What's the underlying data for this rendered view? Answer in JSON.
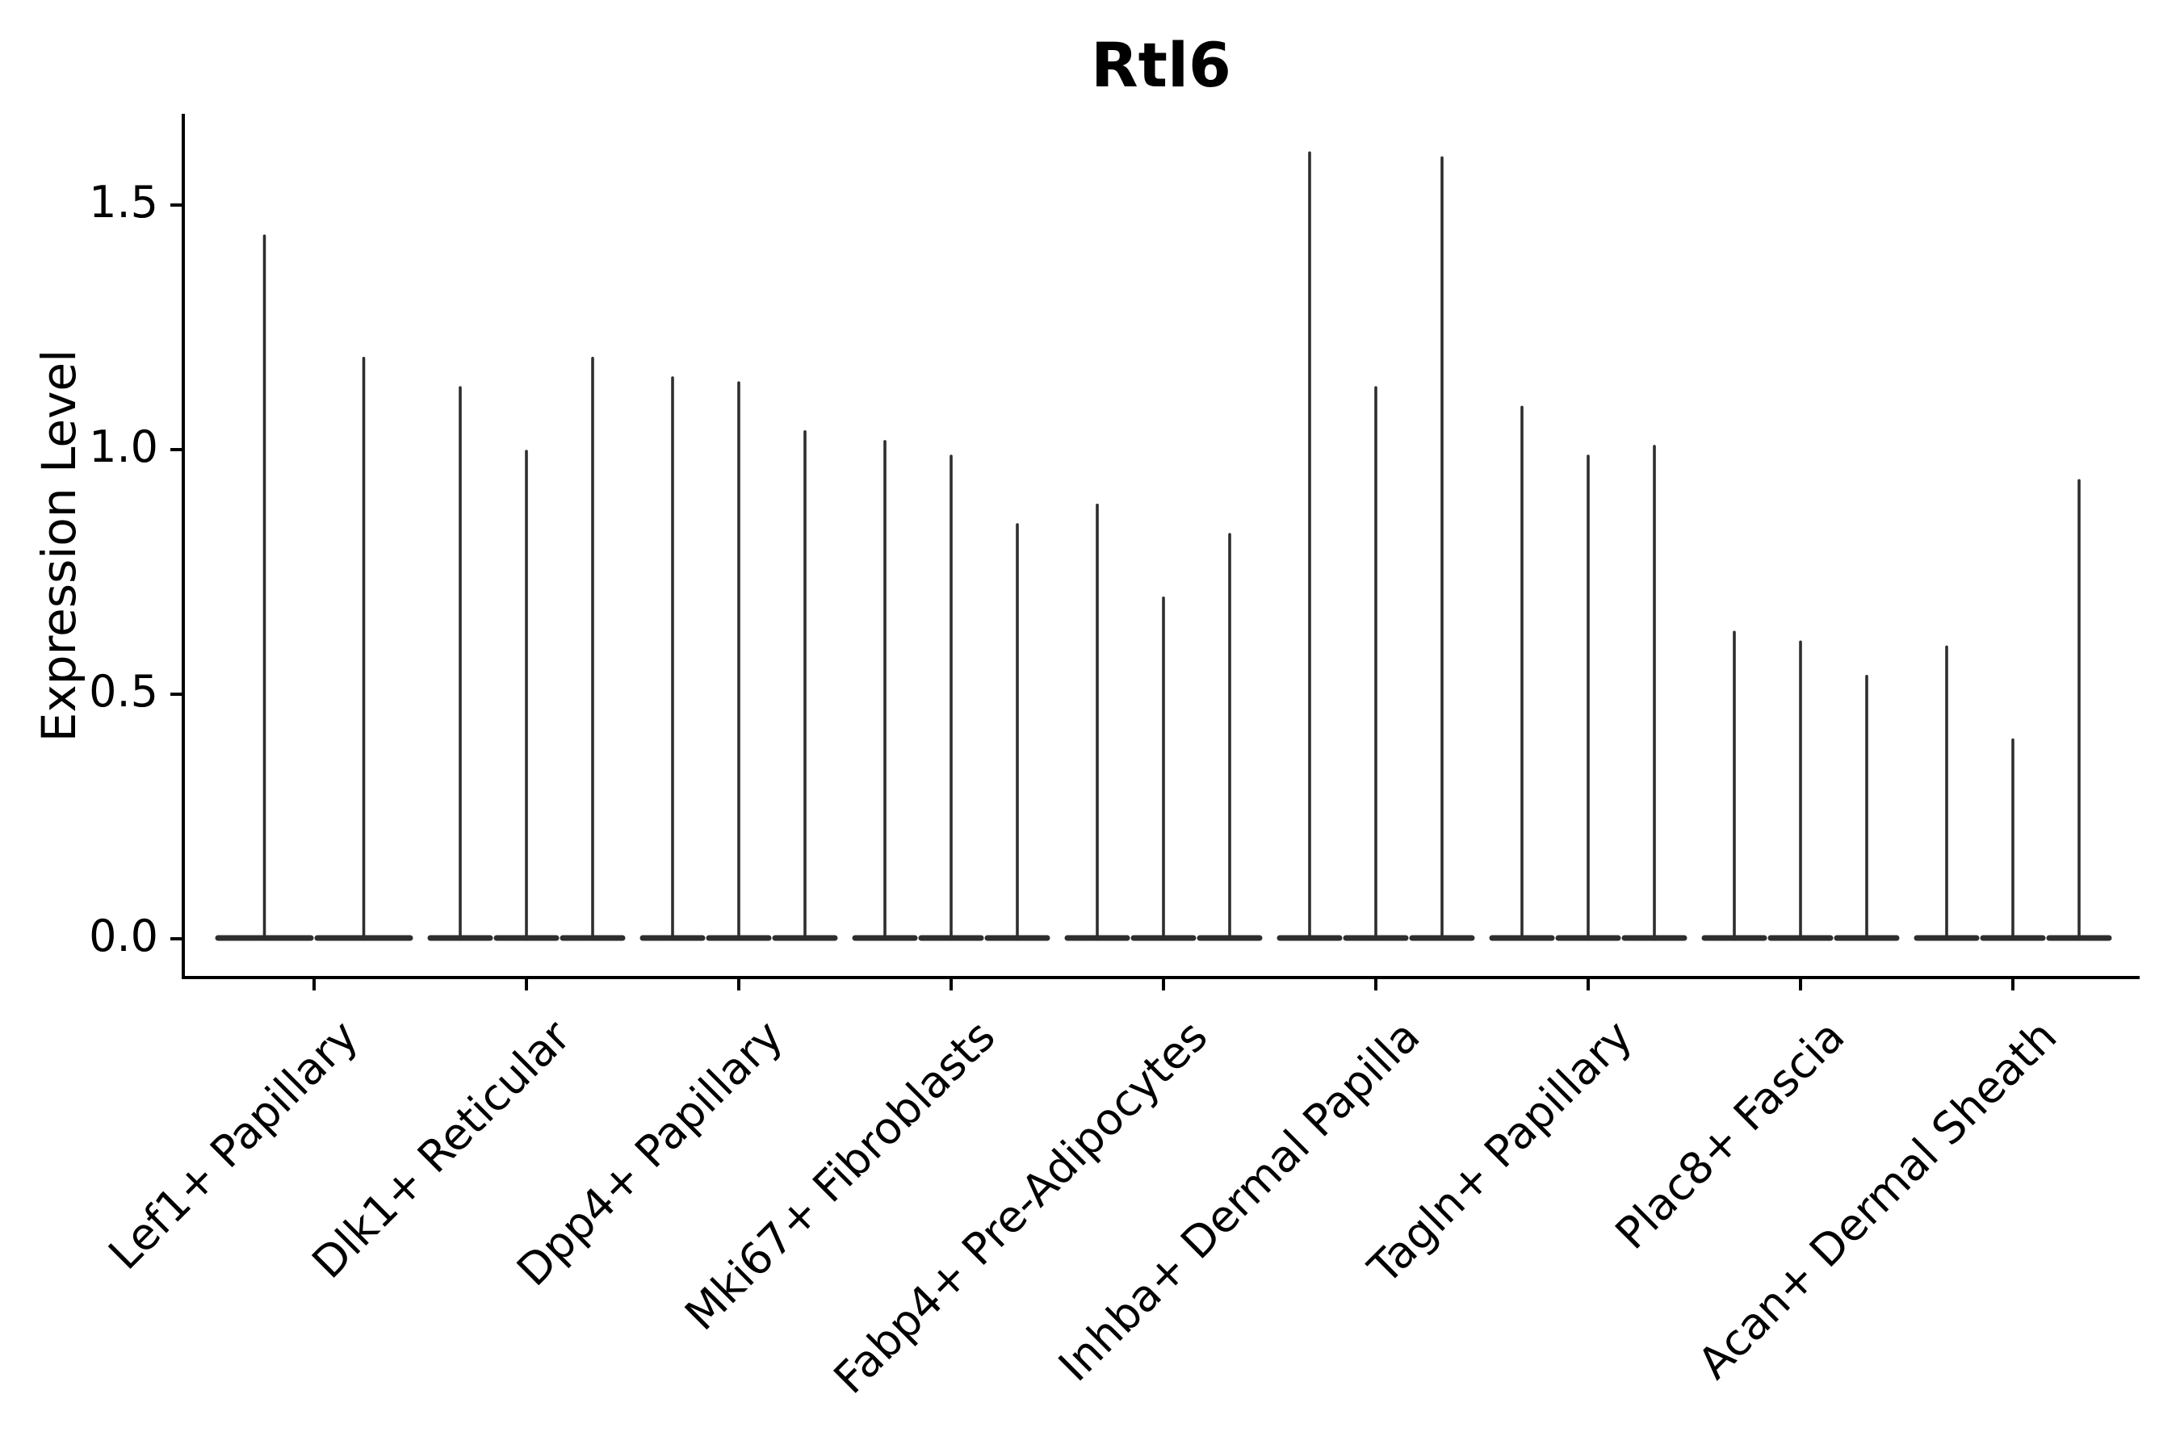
{
  "chart_data": {
    "type": "violin",
    "title": "Rtl6",
    "ylabel": "Expression Level",
    "xlabel": "",
    "categories": [
      "Lef1+ Papillary",
      "Dlk1+ Reticular",
      "Dpp4+ Papillary",
      "Mki67+ Fibroblasts",
      "Fabp4+ Pre-Adipocytes",
      "Inhba+ Dermal Papilla",
      "Tagln+ Papillary",
      "Plac8+ Fascia",
      "Acan+ Dermal Sheath"
    ],
    "series": [
      {
        "category": "Lef1+ Papillary",
        "violin_peaks": [
          1.44,
          1.19
        ]
      },
      {
        "category": "Dlk1+ Reticular",
        "violin_peaks": [
          1.13,
          1.0,
          1.19
        ]
      },
      {
        "category": "Dpp4+ Papillary",
        "violin_peaks": [
          1.15,
          1.14,
          1.04
        ]
      },
      {
        "category": "Mki67+ Fibroblasts",
        "violin_peaks": [
          1.02,
          0.99,
          0.85
        ]
      },
      {
        "category": "Fabp4+ Pre-Adipocytes",
        "violin_peaks": [
          0.89,
          0.7,
          0.83
        ]
      },
      {
        "category": "Inhba+ Dermal Papilla",
        "violin_peaks": [
          1.61,
          1.13,
          1.6
        ]
      },
      {
        "category": "Tagln+ Papillary",
        "violin_peaks": [
          1.09,
          0.99,
          1.01
        ]
      },
      {
        "category": "Plac8+ Fascia",
        "violin_peaks": [
          0.63,
          0.61,
          0.54
        ]
      },
      {
        "category": "Acan+ Dermal Sheath",
        "violin_peaks": [
          0.6,
          0.41,
          0.94
        ]
      }
    ],
    "violin_baseline_value": 0.0,
    "yticks": [
      0.0,
      0.5,
      1.0,
      1.5
    ],
    "ytick_labels": [
      "0.0",
      "0.5",
      "1.0",
      "1.5"
    ],
    "ylim": [
      -0.08,
      1.69
    ],
    "grid": false,
    "legend": false,
    "colors": {
      "violin": "#2e2e2e",
      "axis": "#000000",
      "text": "#000000",
      "background": "#ffffff"
    }
  }
}
